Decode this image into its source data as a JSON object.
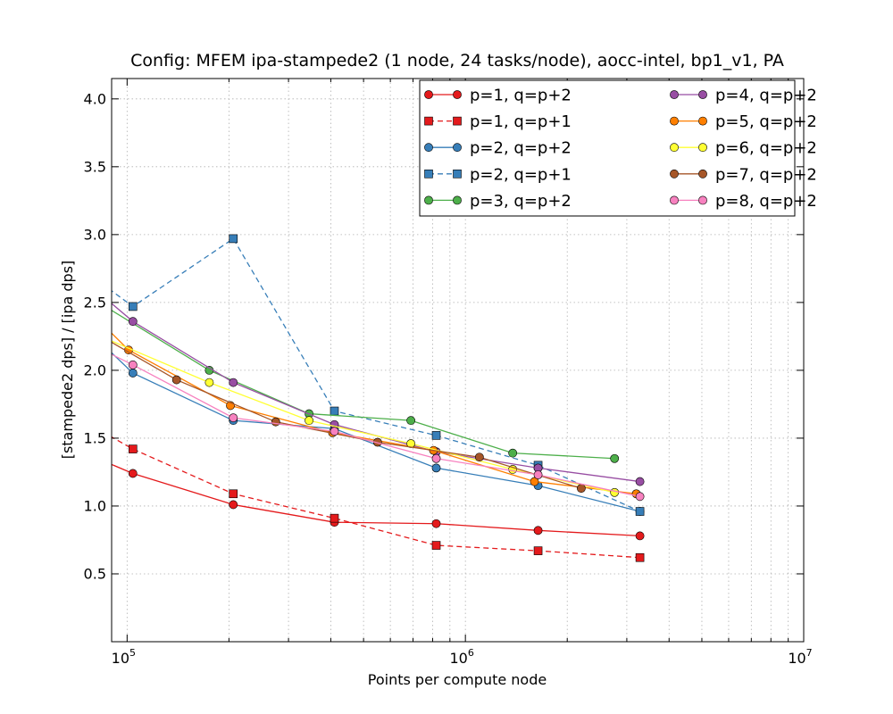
{
  "chart_data": {
    "type": "line",
    "title": "Config: MFEM ipa-stampede2 (1 node, 24 tasks/node), aocc-intel, bp1_v1, PA",
    "xlabel": "Points per compute node",
    "ylabel": "[stampede2 dps] / [ipa dps]",
    "xscale": "log",
    "xlim": [
      90000,
      10000000
    ],
    "ylim": [
      0.0,
      4.15
    ],
    "grid": true,
    "legend_position": "top-right",
    "legend_columns": 2,
    "xticks": [
      {
        "value": 100000,
        "base": "10",
        "exp": "5"
      },
      {
        "value": 1000000,
        "base": "10",
        "exp": "6"
      },
      {
        "value": 10000000,
        "base": "10",
        "exp": "7"
      }
    ],
    "yticks": [
      {
        "value": 0.5,
        "label": "0.5"
      },
      {
        "value": 1.0,
        "label": "1.0"
      },
      {
        "value": 1.5,
        "label": "1.5"
      },
      {
        "value": 2.0,
        "label": "2.0"
      },
      {
        "value": 2.5,
        "label": "2.5"
      },
      {
        "value": 3.0,
        "label": "3.0"
      },
      {
        "value": 3.5,
        "label": "3.5"
      },
      {
        "value": 4.0,
        "label": "4.0"
      }
    ],
    "series": [
      {
        "name": "p=1, q=p+2",
        "color": "#e41a1c",
        "marker": "circle",
        "dash": false,
        "x": [
          80000,
          104000,
          206000,
          410000,
          820000,
          1640000,
          3280000
        ],
        "y": [
          1.36,
          1.24,
          1.01,
          0.88,
          0.87,
          0.82,
          0.78
        ]
      },
      {
        "name": "p=1, q=p+1",
        "color": "#e41a1c",
        "marker": "square",
        "dash": true,
        "x": [
          80000,
          104000,
          206000,
          410000,
          820000,
          1640000,
          3280000
        ],
        "y": [
          1.58,
          1.42,
          1.09,
          0.91,
          0.71,
          0.67,
          0.62
        ]
      },
      {
        "name": "p=2, q=p+2",
        "color": "#377eb8",
        "marker": "circle",
        "dash": false,
        "x": [
          80000,
          104000,
          206000,
          410000,
          820000,
          1640000,
          3280000
        ],
        "y": [
          2.25,
          1.98,
          1.63,
          1.57,
          1.28,
          1.15,
          0.96
        ]
      },
      {
        "name": "p=2, q=p+1",
        "color": "#377eb8",
        "marker": "square",
        "dash": true,
        "x": [
          80000,
          104000,
          206000,
          410000,
          820000,
          1640000,
          3280000
        ],
        "y": [
          2.68,
          2.47,
          2.97,
          1.7,
          1.52,
          1.3,
          0.96
        ]
      },
      {
        "name": "p=3, q=p+2",
        "color": "#4daf4a",
        "marker": "circle",
        "dash": false,
        "x": [
          80000,
          175000,
          345000,
          690000,
          1380000,
          2760000
        ],
        "y": [
          2.52,
          2.0,
          1.68,
          1.63,
          1.39,
          1.35
        ]
      },
      {
        "name": "p=4, q=p+2",
        "color": "#984ea3",
        "marker": "circle",
        "dash": false,
        "x": [
          80000,
          104000,
          206000,
          410000,
          820000,
          1640000,
          3280000
        ],
        "y": [
          2.6,
          2.36,
          1.91,
          1.6,
          1.4,
          1.28,
          1.18
        ]
      },
      {
        "name": "p=5, q=p+2",
        "color": "#ff7f00",
        "marker": "circle",
        "dash": false,
        "x": [
          80000,
          101000,
          202000,
          405000,
          805000,
          1600000,
          3200000
        ],
        "y": [
          2.4,
          2.15,
          1.74,
          1.54,
          1.41,
          1.18,
          1.09
        ]
      },
      {
        "name": "p=6, q=p+2",
        "color": "#ffff33",
        "marker": "circle",
        "dash": false,
        "x": [
          80000,
          175000,
          345000,
          690000,
          1380000,
          2760000
        ],
        "y": [
          2.27,
          1.91,
          1.63,
          1.46,
          1.27,
          1.1
        ]
      },
      {
        "name": "p=7, q=p+2",
        "color": "#a65628",
        "marker": "circle",
        "dash": false,
        "x": [
          80000,
          140000,
          275000,
          550000,
          1100000,
          2200000
        ],
        "y": [
          2.28,
          1.93,
          1.62,
          1.47,
          1.36,
          1.13
        ]
      },
      {
        "name": "p=8, q=p+2",
        "color": "#f781bf",
        "marker": "circle",
        "dash": false,
        "x": [
          80000,
          104000,
          206000,
          410000,
          820000,
          1640000,
          3280000
        ],
        "y": [
          2.18,
          2.04,
          1.65,
          1.55,
          1.35,
          1.23,
          1.07
        ]
      }
    ]
  }
}
